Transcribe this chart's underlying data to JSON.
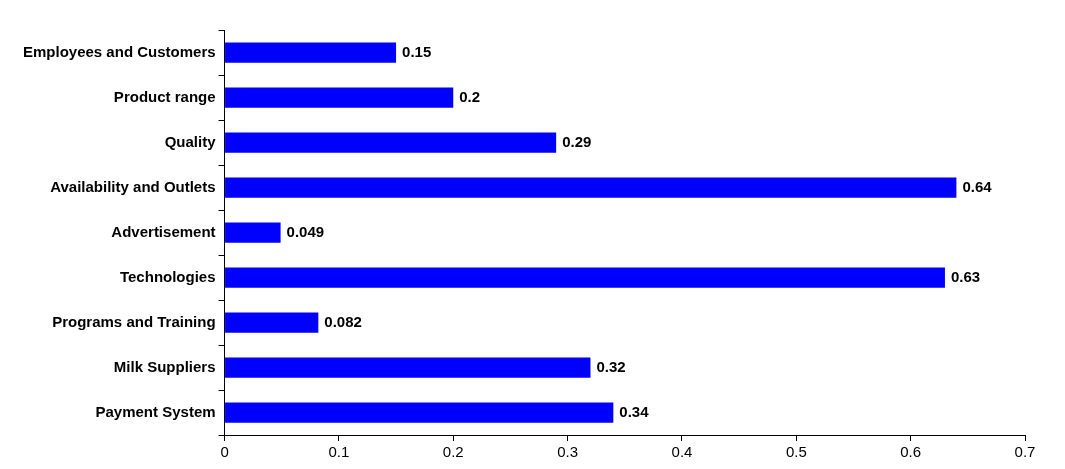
{
  "chart_data": {
    "type": "bar",
    "orientation": "horizontal",
    "categories": [
      "Employees and Customers",
      "Product range",
      "Quality",
      "Availability and Outlets",
      "Advertisement",
      "Technologies",
      "Programs and Training",
      "Milk Suppliers",
      "Payment System"
    ],
    "values": [
      0.15,
      0.2,
      0.29,
      0.64,
      0.049,
      0.63,
      0.082,
      0.32,
      0.34
    ],
    "color": "#0000ff",
    "xlim": [
      0,
      0.7
    ],
    "xticks": [
      0,
      0.1,
      0.2,
      0.3,
      0.4,
      0.5,
      0.6,
      0.7
    ],
    "grid": false,
    "legend": false,
    "data_labels": true
  }
}
